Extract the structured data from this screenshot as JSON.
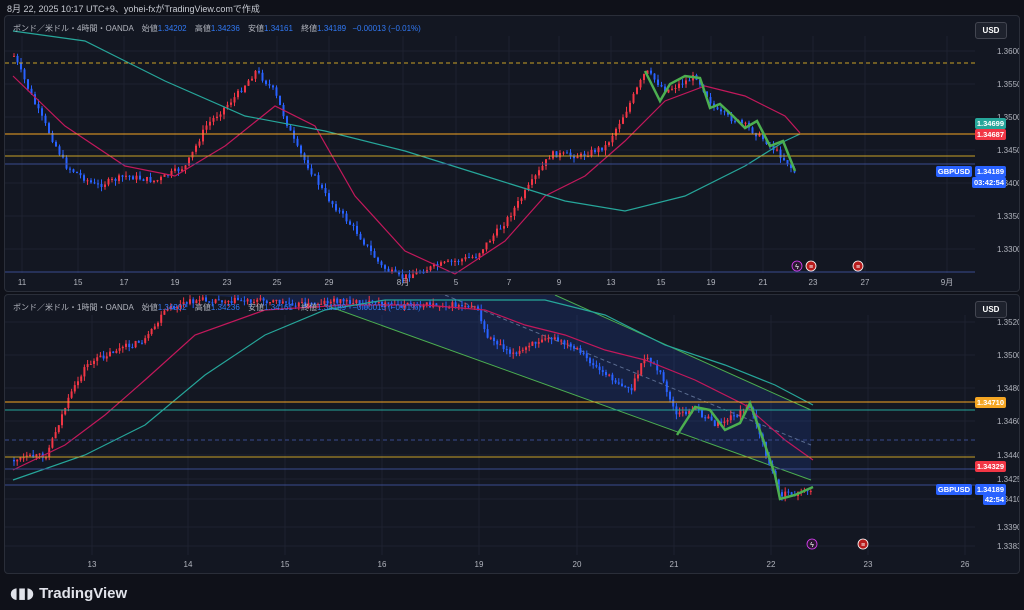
{
  "header": {
    "timestamp": "8月 22, 2025 10:17 UTC+9、yohei-fxがTradingView.comで作成"
  },
  "colors": {
    "bg": "#131722",
    "up": "#f23645",
    "down": "#2962ff",
    "ma_red": "#c2185b",
    "ma_teal": "#26a69a",
    "orange": "#f5a623",
    "green": "#4caf50"
  },
  "currency_button": "USD",
  "top_chart": {
    "title": "ポンド／米ドル・4時間・OANDA",
    "open_label": "始値",
    "open": "1.34202",
    "high_label": "高値",
    "high": "1.34236",
    "low_label": "安値",
    "low": "1.34161",
    "close_label": "終値",
    "close": "1.34189",
    "change": "−0.00013 (−0.01%)",
    "price_ticks": [
      "1.36000",
      "1.35500",
      "1.35000",
      "1.34500",
      "1.34000",
      "1.33500",
      "1.33000"
    ],
    "time_ticks": [
      "11",
      "15",
      "17",
      "19",
      "23",
      "25",
      "29",
      "8月",
      "5",
      "7",
      "9",
      "13",
      "15",
      "19",
      "21",
      "23",
      "27",
      "9月"
    ],
    "tags": {
      "level1": "1.34699",
      "level2": "1.34687",
      "symbol": "GBPUSD",
      "price": "1.34189",
      "countdown": "03:42:54"
    },
    "icons": [
      "lightning-icon",
      "us-flag-icon",
      "us-flag-icon"
    ]
  },
  "bottom_chart": {
    "title": "ポンド／米ドル・1時間・OANDA",
    "open_label": "始値",
    "open": "1.34202",
    "high_label": "高値",
    "high": "1.34236",
    "low_label": "安値",
    "low": "1.34161",
    "close_label": "終値",
    "close": "1.34189",
    "change": "−0.00013 (−0.01%)",
    "price_ticks": [
      "1.35200",
      "1.35000",
      "1.34800",
      "1.34600",
      "1.34400",
      "1.34250",
      "1.34100",
      "1.33900",
      "1.33830"
    ],
    "time_ticks": [
      "13",
      "14",
      "15",
      "16",
      "19",
      "20",
      "21",
      "22",
      "23",
      "26"
    ],
    "tags": {
      "level1": "1.34710",
      "level2": "1.34329",
      "symbol": "GBPUSD",
      "price": "1.34189",
      "countdown": "42:54"
    },
    "icons": [
      "lightning-icon",
      "us-flag-icon"
    ]
  },
  "brand": "TradingView"
}
